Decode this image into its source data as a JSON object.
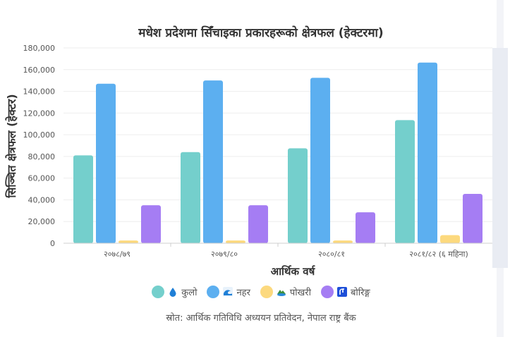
{
  "chart_data": {
    "type": "bar",
    "title": "मधेश प्रदेशमा सिँचाइका प्रकारहरूको क्षेत्रफल (हेक्टरमा)",
    "xlabel": "आर्थिक वर्ष",
    "ylabel": "सिञ्चित क्षेत्रफल (हेक्टर)",
    "ylim": [
      0,
      180000
    ],
    "yticks": [
      "0",
      "20,000",
      "40,000",
      "60,000",
      "80,000",
      "100,000",
      "120,000",
      "140,000",
      "160,000",
      "180,000"
    ],
    "categories": [
      "२०७८/७९",
      "२०७९/८०",
      "२०८०/८१",
      "२०८१/८२ (६ महिना)"
    ],
    "grid": true,
    "legend_position": "bottom",
    "series": [
      {
        "name": "कुलो",
        "icon": "droplet-icon",
        "color": "#74cfcc",
        "values": [
          81000,
          84000,
          87500,
          113500
        ]
      },
      {
        "name": "नहर",
        "icon": "wave-icon",
        "color": "#5caff0",
        "values": [
          147000,
          150000,
          152500,
          166500
        ]
      },
      {
        "name": "पोखरी",
        "icon": "pond-icon",
        "color": "#fcd97e",
        "values": [
          2500,
          2500,
          2500,
          7500
        ]
      },
      {
        "name": "बोरिङ्ग",
        "icon": "boring-icon",
        "color": "#a57df3",
        "values": [
          35000,
          35000,
          28500,
          45500
        ]
      }
    ]
  },
  "source": "स्रोत: आर्थिक गतिविधि अध्ययन प्रतिवेदन, नेपाल राष्ट्र बैंक"
}
